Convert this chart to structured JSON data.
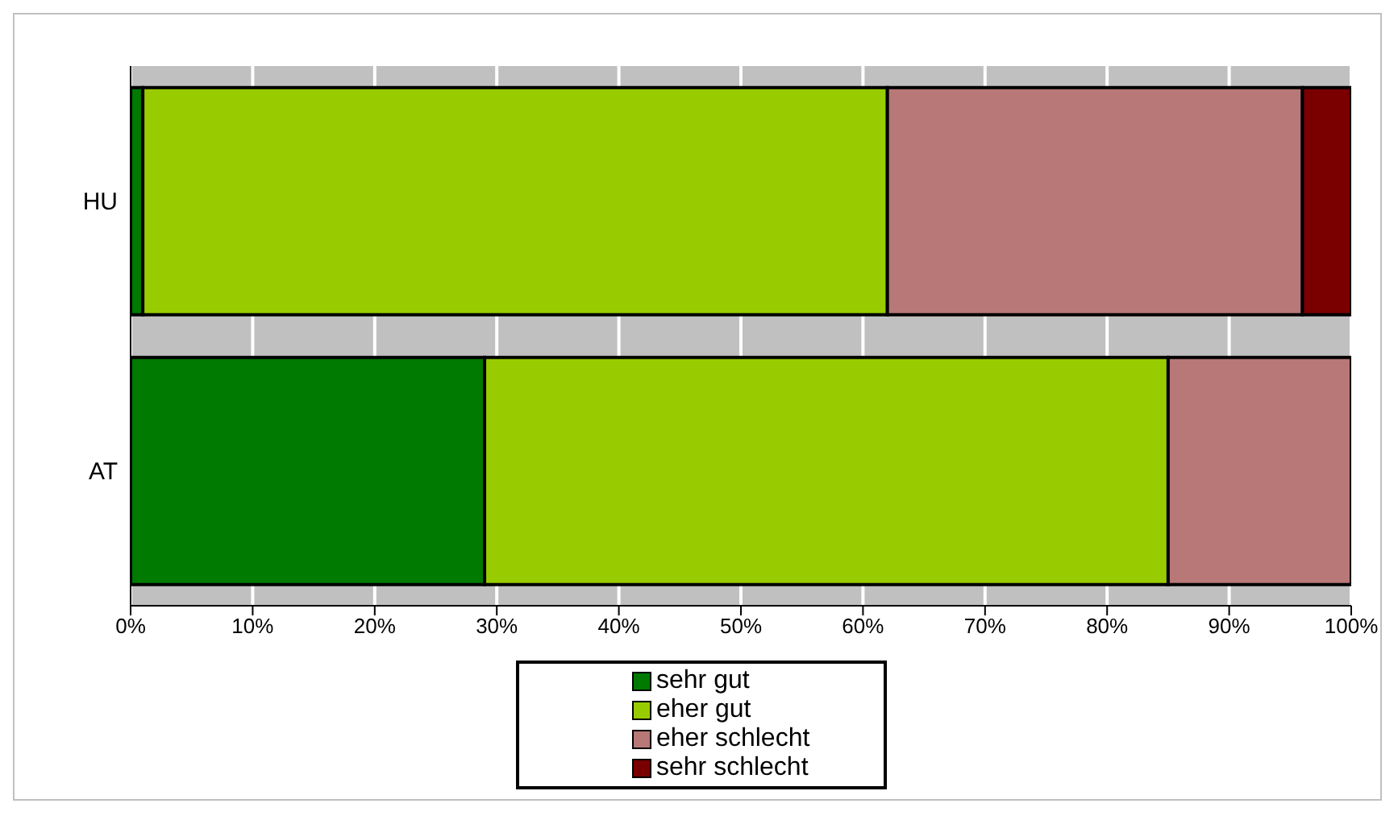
{
  "chart_data": {
    "type": "bar",
    "orientation": "horizontal",
    "stacked": true,
    "categories": [
      "HU",
      "AT"
    ],
    "series": [
      {
        "name": "sehr gut",
        "color": "#007a00",
        "values": [
          1,
          29
        ]
      },
      {
        "name": "eher gut",
        "color": "#99cc00",
        "values": [
          61,
          56
        ]
      },
      {
        "name": "eher schlecht",
        "color": "#b87878",
        "values": [
          34,
          15
        ]
      },
      {
        "name": "sehr schlecht",
        "color": "#7a0000",
        "values": [
          4,
          0
        ]
      }
    ],
    "xlim": [
      0,
      100
    ],
    "xticks": [
      {
        "value": 0,
        "label": "0%"
      },
      {
        "value": 10,
        "label": "10%"
      },
      {
        "value": 20,
        "label": "20%"
      },
      {
        "value": 30,
        "label": "30%"
      },
      {
        "value": 40,
        "label": "40%"
      },
      {
        "value": 50,
        "label": "50%"
      },
      {
        "value": 60,
        "label": "60%"
      },
      {
        "value": 70,
        "label": "70%"
      },
      {
        "value": 80,
        "label": "80%"
      },
      {
        "value": 90,
        "label": "90%"
      },
      {
        "value": 100,
        "label": "100%"
      }
    ],
    "grid": "x",
    "legend": "bottom"
  }
}
